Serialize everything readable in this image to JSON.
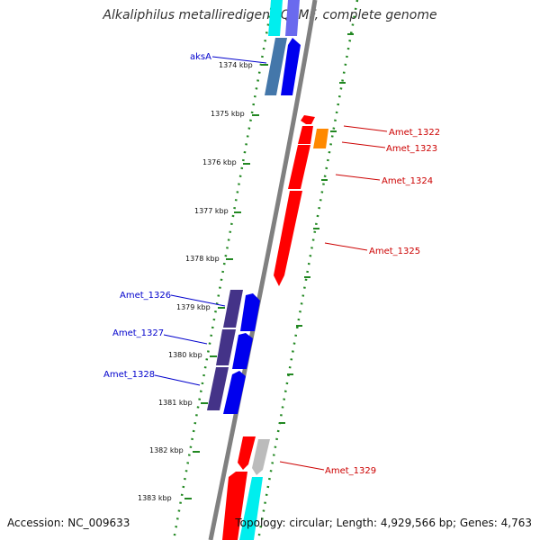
{
  "title": "Alkaliphilus metalliredigens QYMF, complete genome",
  "footer": {
    "accession": "Accession: NC_009633",
    "summary": "Topology: circular; Length: 4,929,566 bp; Genes: 4,763"
  },
  "ruler_ticks": [
    "1374 kbp",
    "1375 kbp",
    "1376 kbp",
    "1377 kbp",
    "1378 kbp",
    "1379 kbp",
    "1380 kbp",
    "1381 kbp",
    "1382 kbp",
    "1383 kbp"
  ],
  "gene_labels": {
    "left": [
      "aksA",
      "Amet_1326",
      "Amet_1327",
      "Amet_1328"
    ],
    "right": [
      "Amet_1322",
      "Amet_1323",
      "Amet_1324",
      "Amet_1325",
      "Amet_1329"
    ]
  },
  "colors": {
    "left_label": "#0000cc",
    "right_label": "#cc0000",
    "backbone": "#808080",
    "tick": "#228822",
    "forward": "#0000ee",
    "reverse": "#ff0000",
    "cyan": "#00eeee",
    "steel": "#4477aa",
    "dark_slate": "#443388",
    "orange": "#ff8800",
    "gray": "#bbbbbb"
  }
}
